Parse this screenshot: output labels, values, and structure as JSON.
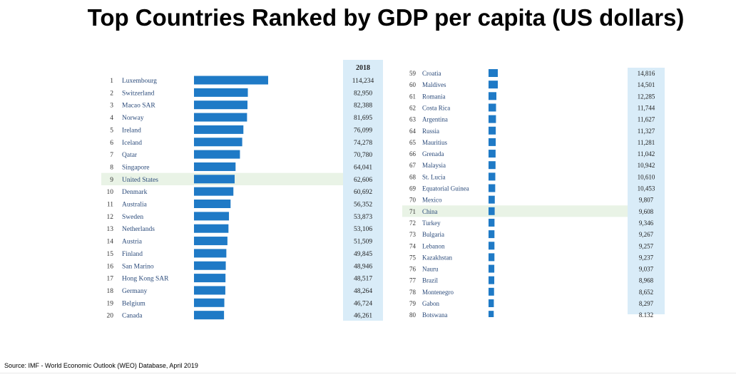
{
  "title": "Top Countries Ranked by GDP per capita (US dollars)",
  "source": "Source: IMF - World Economic Outlook (WEO) Database, April 2019",
  "chart_data": {
    "type": "bar",
    "title": "Top Countries Ranked by GDP per capita (US dollars)",
    "value_header": "2018",
    "bar_color": "#1f7ac6",
    "highlight_color": "#e9f3e6",
    "value_col_color": "#d9ecf8",
    "left_table": {
      "highlight_rank": 9,
      "rows": [
        {
          "rank": "1",
          "country": "Luxembourg",
          "label": "114,234",
          "value": 114234
        },
        {
          "rank": "2",
          "country": "Switzerland",
          "label": "82,950",
          "value": 82950
        },
        {
          "rank": "3",
          "country": "Macao SAR",
          "label": "82,388",
          "value": 82388
        },
        {
          "rank": "4",
          "country": "Norway",
          "label": "81,695",
          "value": 81695
        },
        {
          "rank": "5",
          "country": "Ireland",
          "label": "76,099",
          "value": 76099
        },
        {
          "rank": "6",
          "country": "Iceland",
          "label": "74,278",
          "value": 74278
        },
        {
          "rank": "7",
          "country": "Qatar",
          "label": "70,780",
          "value": 70780
        },
        {
          "rank": "8",
          "country": "Singapore",
          "label": "64,041",
          "value": 64041
        },
        {
          "rank": "9",
          "country": "United States",
          "label": "62,606",
          "value": 62606
        },
        {
          "rank": "10",
          "country": "Denmark",
          "label": "60,692",
          "value": 60692
        },
        {
          "rank": "11",
          "country": "Australia",
          "label": "56,352",
          "value": 56352
        },
        {
          "rank": "12",
          "country": "Sweden",
          "label": "53,873",
          "value": 53873
        },
        {
          "rank": "13",
          "country": "Netherlands",
          "label": "53,106",
          "value": 53106
        },
        {
          "rank": "14",
          "country": "Austria",
          "label": "51,509",
          "value": 51509
        },
        {
          "rank": "15",
          "country": "Finland",
          "label": "49,845",
          "value": 49845
        },
        {
          "rank": "16",
          "country": "San Marino",
          "label": "48,946",
          "value": 48946
        },
        {
          "rank": "17",
          "country": "Hong Kong SAR",
          "label": "48,517",
          "value": 48517
        },
        {
          "rank": "18",
          "country": "Germany",
          "label": "48,264",
          "value": 48264
        },
        {
          "rank": "19",
          "country": "Belgium",
          "label": "46,724",
          "value": 46724
        },
        {
          "rank": "20",
          "country": "Canada",
          "label": "46,261",
          "value": 46261
        }
      ]
    },
    "right_table": {
      "highlight_rank": 71,
      "rows": [
        {
          "rank": "59",
          "country": "Croatia",
          "label": "14,816",
          "value": 14816
        },
        {
          "rank": "60",
          "country": "Maldives",
          "label": "14,501",
          "value": 14501
        },
        {
          "rank": "61",
          "country": "Romania",
          "label": "12,285",
          "value": 12285
        },
        {
          "rank": "62",
          "country": "Costa Rica",
          "label": "11,744",
          "value": 11744
        },
        {
          "rank": "63",
          "country": "Argentina",
          "label": "11,627",
          "value": 11627
        },
        {
          "rank": "64",
          "country": "Russia",
          "label": "11,327",
          "value": 11327
        },
        {
          "rank": "65",
          "country": "Mauritius",
          "label": "11,281",
          "value": 11281
        },
        {
          "rank": "66",
          "country": "Grenada",
          "label": "11,042",
          "value": 11042
        },
        {
          "rank": "67",
          "country": "Malaysia",
          "label": "10,942",
          "value": 10942
        },
        {
          "rank": "68",
          "country": "St. Lucia",
          "label": "10,610",
          "value": 10610
        },
        {
          "rank": "69",
          "country": "Equatorial Guinea",
          "label": "10,453",
          "value": 10453
        },
        {
          "rank": "70",
          "country": "Mexico",
          "label": "9,807",
          "value": 9807
        },
        {
          "rank": "71",
          "country": "China",
          "label": "9,608",
          "value": 9608
        },
        {
          "rank": "72",
          "country": "Turkey",
          "label": "9,346",
          "value": 9346
        },
        {
          "rank": "73",
          "country": "Bulgaria",
          "label": "9,267",
          "value": 9267
        },
        {
          "rank": "74",
          "country": "Lebanon",
          "label": "9,257",
          "value": 9257
        },
        {
          "rank": "75",
          "country": "Kazakhstan",
          "label": "9,237",
          "value": 9237
        },
        {
          "rank": "76",
          "country": "Nauru",
          "label": "9,037",
          "value": 9037
        },
        {
          "rank": "77",
          "country": "Brazil",
          "label": "8,968",
          "value": 8968
        },
        {
          "rank": "78",
          "country": "Montenegro",
          "label": "8,652",
          "value": 8652
        },
        {
          "rank": "79",
          "country": "Gabon",
          "label": "8,297",
          "value": 8297
        },
        {
          "rank": "80",
          "country": "Botswana",
          "label": "8,132",
          "value": 8132
        }
      ]
    }
  }
}
